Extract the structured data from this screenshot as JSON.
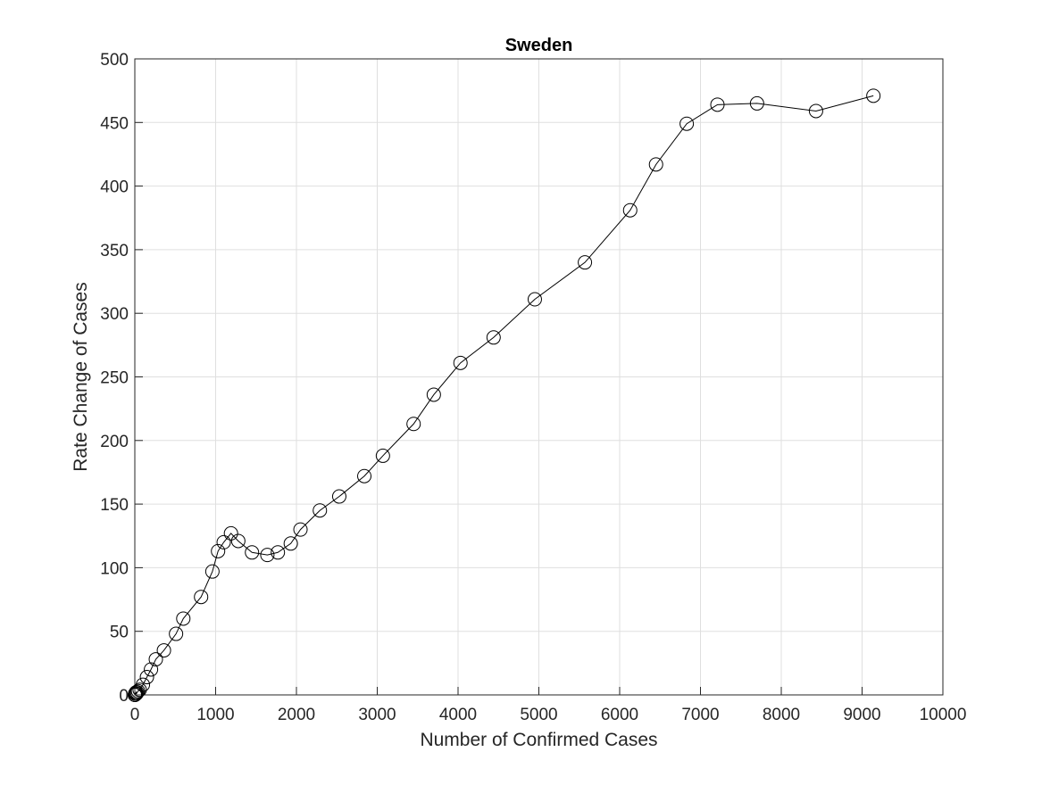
{
  "chart_data": {
    "type": "line",
    "title": "Sweden",
    "xlabel": "Number of Confirmed Cases",
    "ylabel": "Rate Change of Cases",
    "xlim": [
      0,
      10000
    ],
    "ylim": [
      0,
      500
    ],
    "xticks": [
      0,
      1000,
      2000,
      3000,
      4000,
      5000,
      6000,
      7000,
      8000,
      9000,
      10000
    ],
    "yticks": [
      0,
      50,
      100,
      150,
      200,
      250,
      300,
      350,
      400,
      450,
      500
    ],
    "grid": true,
    "marker": "circle",
    "line_color": "#000000",
    "series": [
      {
        "x": [
          0,
          2,
          5,
          10,
          15,
          20,
          30,
          40,
          60,
          100,
          150,
          200,
          260,
          360,
          510,
          600,
          820,
          960,
          1030,
          1100,
          1190,
          1280,
          1450,
          1640,
          1770,
          1930,
          2050,
          2290,
          2530,
          2840,
          3070,
          3450,
          3700,
          4030,
          4440,
          4950,
          5570,
          6130,
          6450,
          6830,
          7210,
          7700,
          8430,
          9140
        ],
        "y": [
          0,
          0,
          1,
          1,
          2,
          1,
          2,
          3,
          4,
          8,
          14,
          20,
          28,
          35,
          48,
          60,
          77,
          97,
          113,
          120,
          127,
          121,
          112,
          110,
          112,
          119,
          130,
          145,
          156,
          172,
          188,
          213,
          236,
          261,
          281,
          311,
          340,
          381,
          417,
          449,
          464,
          465,
          459,
          471
        ]
      }
    ]
  }
}
